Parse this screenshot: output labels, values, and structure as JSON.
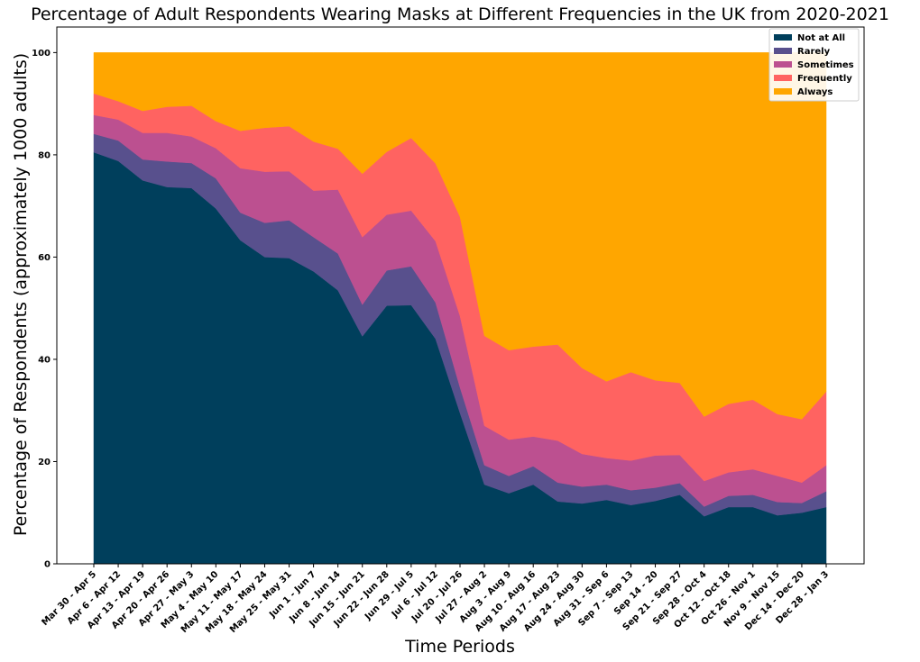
{
  "chart_data": {
    "type": "area",
    "stacked": true,
    "title": "Percentage of Adult Respondents Wearing Masks at Different Frequencies in the UK from 2020-2021",
    "xlabel": "Time Periods",
    "ylabel": "Percentage of Respondents (approximately 1000 adults)",
    "ylim": [
      0,
      105
    ],
    "yticks": [
      0,
      20,
      40,
      60,
      80,
      100
    ],
    "grid": false,
    "legend_position": "top-right",
    "categories": [
      "Mar 30 - Apr 5",
      "Apr 6 - Apr 12",
      "Apr 13 - Apr 19",
      "Apr 20 - Apr 26",
      "Apr 27 - May 3",
      "May 4 - May 10",
      "May 11 - May 17",
      "May 18 - May 24",
      "May 25 - May 31",
      "Jun 1 - Jun 7",
      "Jun 8 - Jun 14",
      "Jun 15 - Jun 21",
      "Jun 22 - Jun 28",
      "Jun 29 - Jul 5",
      "Jul 6 - Jul 12",
      "Jul 20 - Jul 26",
      "Jul 27 - Aug 2",
      "Aug 3 - Aug 9",
      "Aug 10 - Aug 16",
      "Aug 17 - Aug 23",
      "Aug 24 - Aug 30",
      "Aug 31 - Sep 6",
      "Sep 7 - Sep 13",
      "Sep 14 - 20",
      "Sep 21 - Sep 27",
      "Sep 28 - Oct 4",
      "Oct 12 - Oct 18",
      "Oct 26 - Nov 1",
      "Nov 9 - Nov 15",
      "Dec 14 - Dec 20",
      "Dec 28 - Jan 3"
    ],
    "series": [
      {
        "name": "Not at All",
        "color": "#003f5c",
        "values": [
          80.5,
          78.8,
          75.0,
          73.7,
          73.5,
          69.5,
          63.3,
          60.0,
          59.8,
          57.2,
          53.5,
          44.5,
          50.5,
          50.6,
          44.0,
          29.5,
          15.5,
          13.8,
          15.5,
          12.2,
          11.8,
          12.5,
          11.5,
          12.3,
          13.5,
          9.3,
          11.1,
          11.1,
          9.5,
          10.0,
          11.1
        ]
      },
      {
        "name": "Rarely",
        "color": "#58508d",
        "values": [
          3.6,
          4.0,
          4.1,
          5.0,
          4.9,
          5.9,
          5.4,
          6.7,
          7.4,
          6.7,
          7.2,
          6.2,
          6.9,
          7.6,
          7.1,
          5.0,
          3.8,
          3.4,
          3.6,
          3.7,
          3.3,
          3.0,
          2.9,
          2.6,
          2.3,
          1.9,
          2.2,
          2.4,
          2.6,
          1.9,
          3.1
        ]
      },
      {
        "name": "Sometimes",
        "color": "#bc5090",
        "values": [
          3.7,
          4.1,
          5.2,
          5.6,
          5.2,
          5.9,
          8.7,
          10.0,
          9.6,
          9.1,
          12.5,
          13.2,
          10.9,
          10.9,
          12.0,
          14.0,
          7.7,
          7.1,
          5.8,
          8.2,
          6.4,
          5.2,
          5.8,
          6.3,
          5.5,
          5.0,
          4.6,
          5.0,
          5.1,
          4.0,
          5.1
        ]
      },
      {
        "name": "Frequently",
        "color": "#ff6361",
        "values": [
          4.2,
          3.6,
          4.3,
          5.1,
          6.0,
          5.3,
          7.3,
          8.6,
          8.8,
          9.6,
          8.0,
          12.4,
          12.3,
          14.2,
          15.2,
          19.4,
          17.6,
          17.5,
          17.6,
          18.8,
          16.8,
          15.0,
          17.3,
          14.7,
          14.1,
          12.6,
          13.4,
          13.6,
          12.1,
          12.4,
          14.4
        ]
      },
      {
        "name": "Always",
        "color": "#ffa600",
        "values": [
          8.0,
          9.5,
          11.4,
          10.6,
          10.4,
          13.4,
          15.3,
          14.7,
          14.4,
          17.4,
          18.8,
          23.7,
          19.4,
          16.7,
          21.7,
          32.1,
          55.4,
          58.2,
          57.5,
          57.1,
          61.7,
          64.3,
          62.5,
          64.1,
          64.6,
          71.2,
          68.7,
          67.9,
          70.7,
          71.7,
          66.3
        ]
      }
    ]
  }
}
